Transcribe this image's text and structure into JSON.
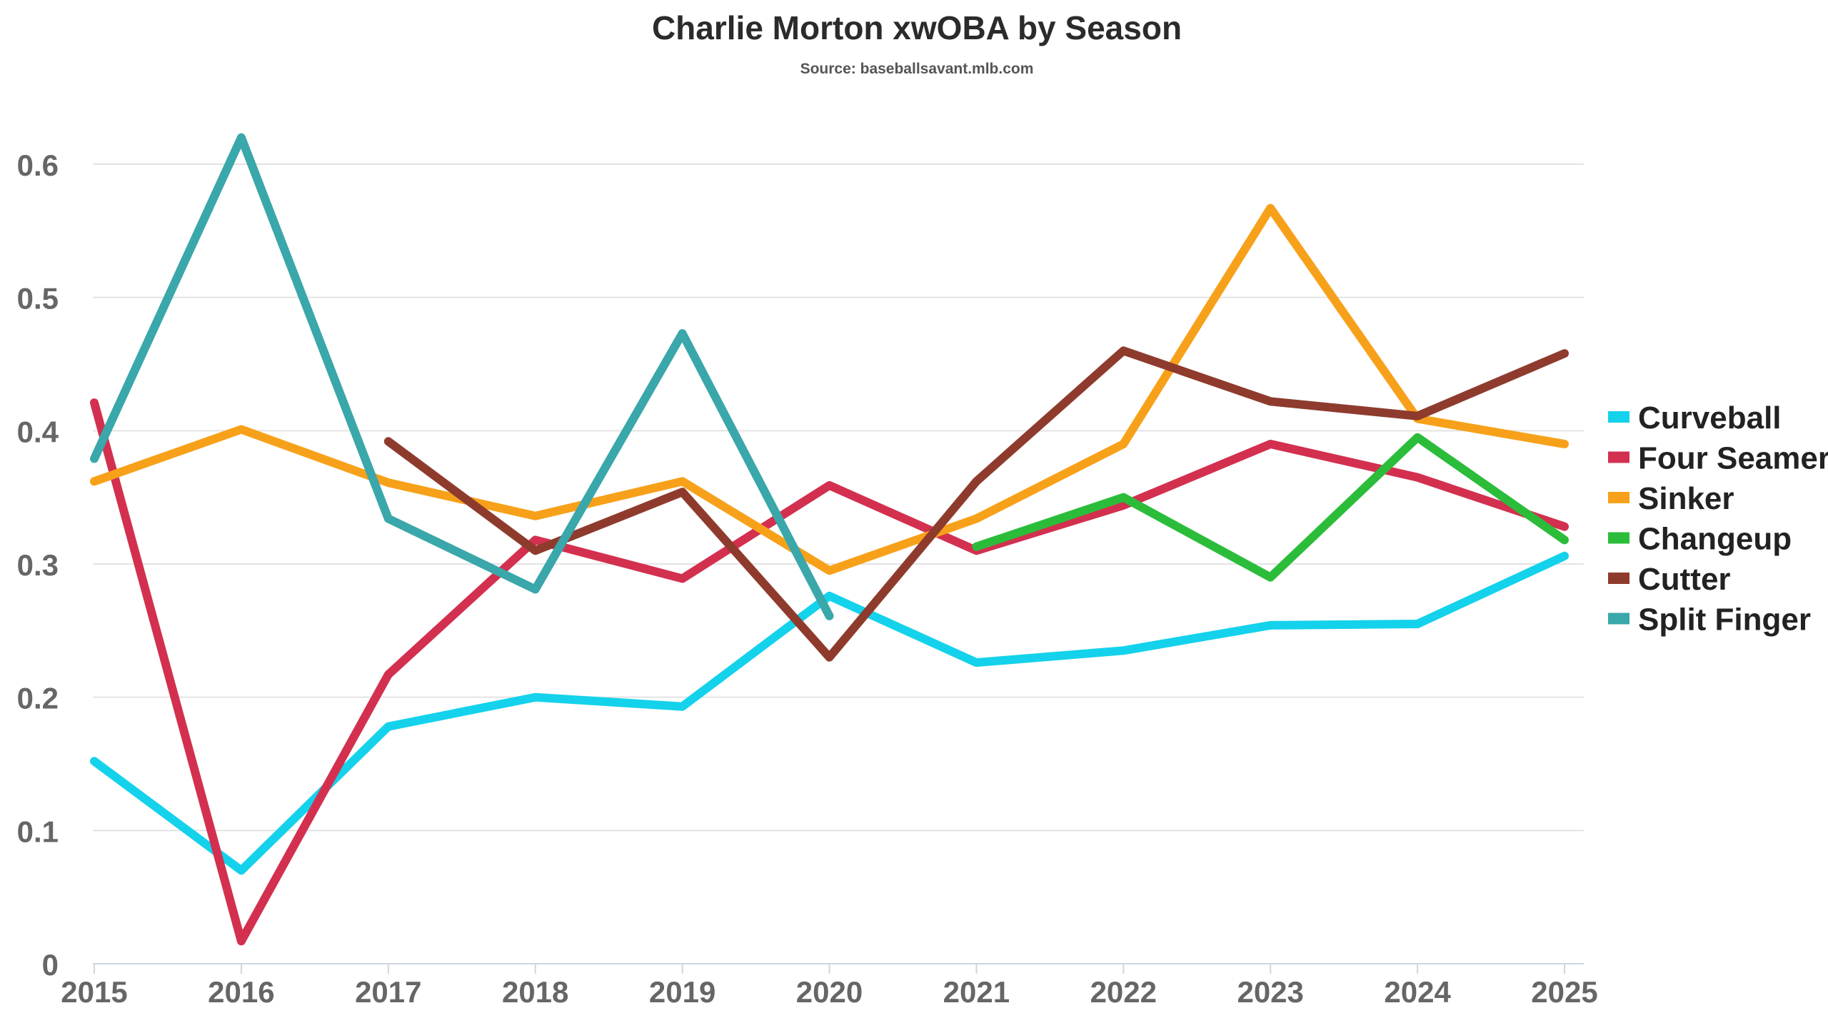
{
  "chart_data": {
    "type": "line",
    "title": "Charlie Morton xwOBA by Season",
    "subtitle": "Source: baseballsavant.mlb.com",
    "xlabel": "",
    "ylabel": "",
    "x": [
      "2015",
      "2016",
      "2017",
      "2018",
      "2019",
      "2020",
      "2021",
      "2022",
      "2023",
      "2024",
      "2025"
    ],
    "ylim": [
      0,
      0.6
    ],
    "yticks": [
      "0",
      "0.1",
      "0.2",
      "0.3",
      "0.4",
      "0.5",
      "0.6"
    ],
    "grid": "horizontal",
    "legend_position": "right",
    "series": [
      {
        "name": "Curveball",
        "color": "#14d2eb",
        "values": [
          0.152,
          0.07,
          0.178,
          0.2,
          0.193,
          0.276,
          0.226,
          0.235,
          0.254,
          0.255,
          0.306
        ]
      },
      {
        "name": "Four Seamer",
        "color": "#d3304f",
        "values": [
          0.421,
          0.017,
          0.217,
          0.318,
          0.289,
          0.359,
          0.31,
          0.344,
          0.39,
          0.365,
          0.328
        ]
      },
      {
        "name": "Sinker",
        "color": "#f7a11a",
        "values": [
          0.362,
          0.401,
          0.361,
          0.336,
          0.362,
          0.295,
          0.334,
          0.39,
          0.567,
          0.409,
          0.39
        ]
      },
      {
        "name": "Changeup",
        "color": "#2bbd3a",
        "values": [
          null,
          null,
          null,
          null,
          null,
          null,
          0.313,
          0.35,
          0.29,
          0.395,
          0.318
        ]
      },
      {
        "name": "Cutter",
        "color": "#8e3b2d",
        "values": [
          null,
          null,
          0.392,
          0.31,
          0.354,
          0.23,
          0.362,
          0.46,
          0.422,
          0.411,
          0.458
        ]
      },
      {
        "name": "Split Finger",
        "color": "#3aa7aa",
        "values": [
          0.379,
          0.62,
          0.334,
          0.281,
          0.473,
          0.261,
          null,
          null,
          null,
          null,
          null
        ]
      }
    ]
  }
}
